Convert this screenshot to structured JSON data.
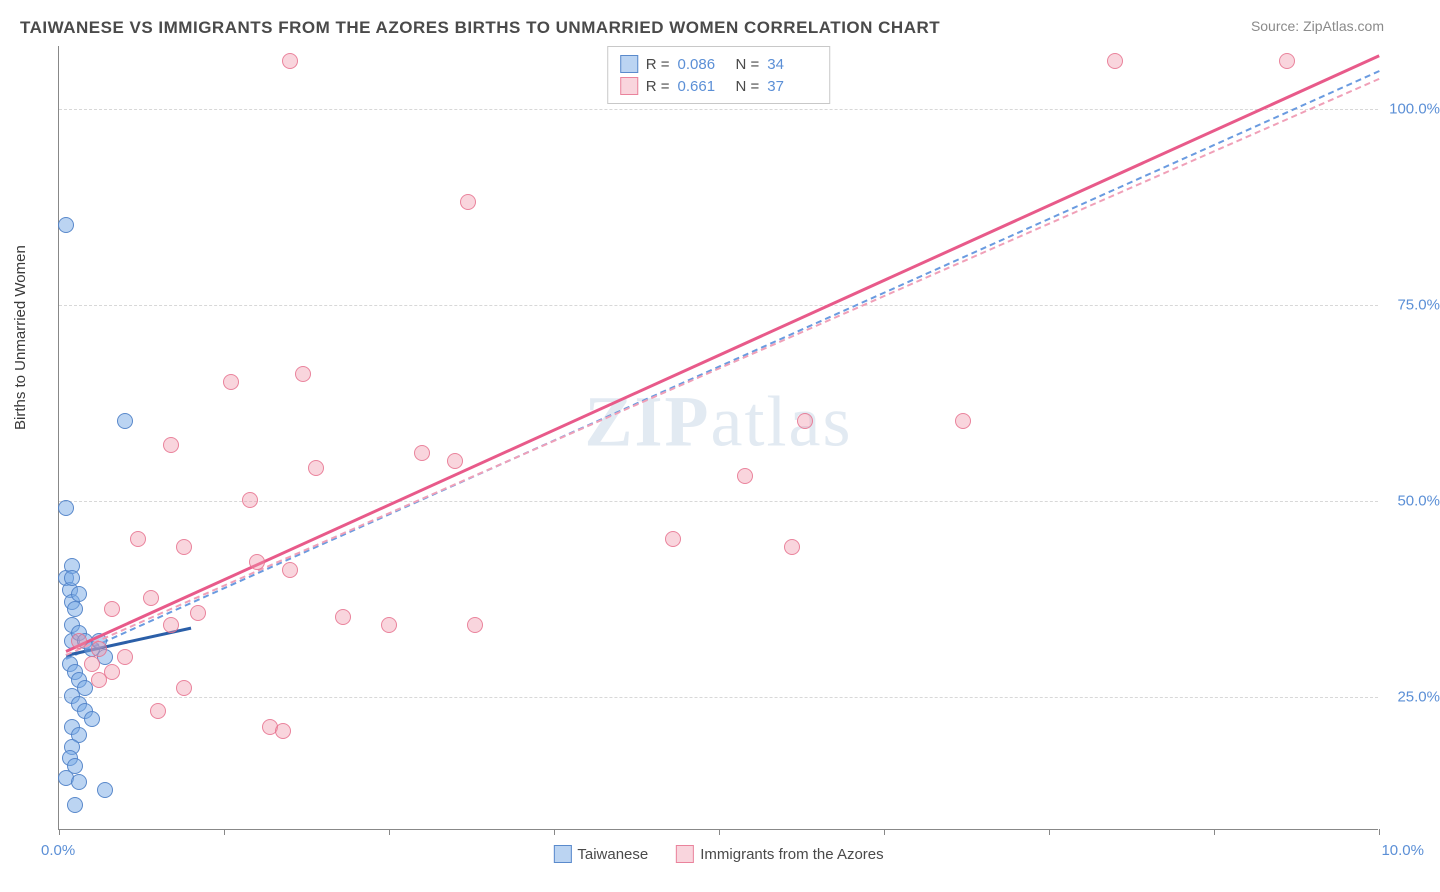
{
  "title": "TAIWANESE VS IMMIGRANTS FROM THE AZORES BIRTHS TO UNMARRIED WOMEN CORRELATION CHART",
  "source": "Source: ZipAtlas.com",
  "y_axis_label": "Births to Unmarried Women",
  "watermark_bold": "ZIP",
  "watermark_rest": "atlas",
  "chart": {
    "type": "scatter",
    "xlim": [
      0,
      10
    ],
    "ylim": [
      8,
      108
    ],
    "x_ticks": [
      0,
      1.25,
      2.5,
      3.75,
      5,
      6.25,
      7.5,
      8.75,
      10
    ],
    "x_tick_labels": {
      "0": "0.0%",
      "10": "10.0%"
    },
    "y_ticks": [
      25,
      50,
      75,
      100
    ],
    "y_tick_labels": [
      "25.0%",
      "50.0%",
      "75.0%",
      "100.0%"
    ],
    "grid_color": "#d8d8d8",
    "background_color": "#ffffff",
    "axis_color": "#888888",
    "point_radius": 8,
    "series": [
      {
        "name": "Taiwanese",
        "color_fill": "rgba(120,170,230,0.5)",
        "color_stroke": "rgba(80,130,200,0.9)",
        "R": "0.086",
        "N": "34",
        "trend_solid": {
          "x1": 0.05,
          "y1": 30.5,
          "x2": 1.0,
          "y2": 34.0,
          "color": "#2b5fa8",
          "width": 3
        },
        "trend_dash": {
          "x1": 0.05,
          "y1": 30.0,
          "x2": 10.0,
          "y2": 105.0,
          "color": "#6a9be0",
          "width": 2
        },
        "points": [
          [
            0.05,
            85
          ],
          [
            0.05,
            49
          ],
          [
            0.05,
            40
          ],
          [
            0.1,
            41.5
          ],
          [
            0.08,
            38.5
          ],
          [
            0.1,
            40
          ],
          [
            0.1,
            37
          ],
          [
            0.15,
            38
          ],
          [
            0.12,
            36
          ],
          [
            0.1,
            34
          ],
          [
            0.1,
            32
          ],
          [
            0.15,
            33
          ],
          [
            0.2,
            32
          ],
          [
            0.25,
            31
          ],
          [
            0.3,
            32
          ],
          [
            0.35,
            30
          ],
          [
            0.08,
            29
          ],
          [
            0.12,
            28
          ],
          [
            0.15,
            27
          ],
          [
            0.2,
            26
          ],
          [
            0.1,
            25
          ],
          [
            0.15,
            24
          ],
          [
            0.2,
            23
          ],
          [
            0.25,
            22
          ],
          [
            0.1,
            21
          ],
          [
            0.15,
            20
          ],
          [
            0.1,
            18.5
          ],
          [
            0.08,
            17
          ],
          [
            0.12,
            16
          ],
          [
            0.05,
            14.5
          ],
          [
            0.15,
            14
          ],
          [
            0.35,
            13
          ],
          [
            0.12,
            11
          ],
          [
            0.5,
            60
          ]
        ]
      },
      {
        "name": "Immigrants from the Azores",
        "color_fill": "rgba(240,150,170,0.4)",
        "color_stroke": "rgba(230,110,140,0.8)",
        "R": "0.661",
        "N": "37",
        "trend_solid": {
          "x1": 0.05,
          "y1": 31.0,
          "x2": 10.0,
          "y2": 107.0,
          "color": "#e85a8a",
          "width": 3
        },
        "trend_dash": {
          "x1": 0.05,
          "y1": 30.5,
          "x2": 10.0,
          "y2": 104.0,
          "color": "#f0a0b8",
          "width": 2
        },
        "points": [
          [
            1.75,
            106
          ],
          [
            8.0,
            106
          ],
          [
            9.3,
            106
          ],
          [
            3.1,
            88
          ],
          [
            1.3,
            65
          ],
          [
            1.85,
            66
          ],
          [
            0.85,
            57
          ],
          [
            2.75,
            56
          ],
          [
            3.0,
            55
          ],
          [
            1.45,
            50
          ],
          [
            1.95,
            54
          ],
          [
            5.65,
            60
          ],
          [
            6.85,
            60
          ],
          [
            5.2,
            53
          ],
          [
            4.65,
            45
          ],
          [
            5.55,
            44
          ],
          [
            0.6,
            45
          ],
          [
            0.95,
            44
          ],
          [
            1.5,
            42
          ],
          [
            1.75,
            41
          ],
          [
            0.7,
            37.5
          ],
          [
            0.4,
            36
          ],
          [
            1.05,
            35.5
          ],
          [
            0.85,
            34
          ],
          [
            2.15,
            35
          ],
          [
            2.5,
            34
          ],
          [
            3.15,
            34
          ],
          [
            0.15,
            32
          ],
          [
            0.3,
            31
          ],
          [
            0.5,
            30
          ],
          [
            0.25,
            29
          ],
          [
            0.4,
            28
          ],
          [
            0.3,
            27
          ],
          [
            0.95,
            26
          ],
          [
            0.75,
            23
          ],
          [
            1.6,
            21
          ],
          [
            1.7,
            20.5
          ]
        ]
      }
    ],
    "legend_bottom": [
      {
        "swatch": "blue",
        "label": "Taiwanese"
      },
      {
        "swatch": "pink",
        "label": "Immigrants from the Azores"
      }
    ],
    "legend_top": {
      "rows": [
        {
          "swatch": "blue",
          "R_label": "R =",
          "R_val": "0.086",
          "N_label": "N =",
          "N_val": "34"
        },
        {
          "swatch": "pink",
          "R_label": "R =",
          "R_val": "0.661",
          "N_label": "N =",
          "N_val": "37"
        }
      ]
    }
  }
}
